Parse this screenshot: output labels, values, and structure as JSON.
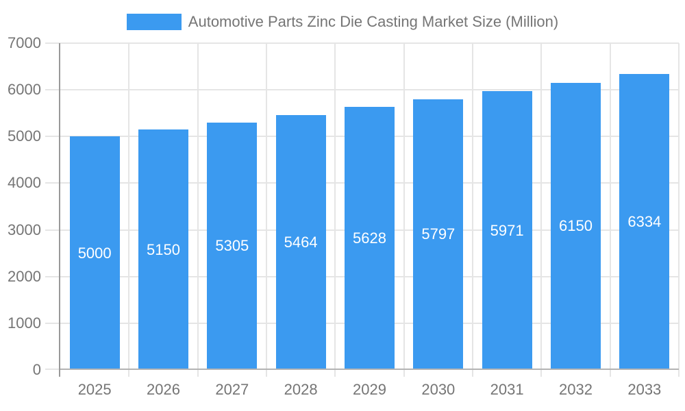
{
  "chart_data": {
    "type": "bar",
    "title": "Automotive Parts Zinc Die Casting Market Size (Million)",
    "categories": [
      "2025",
      "2026",
      "2027",
      "2028",
      "2029",
      "2030",
      "2031",
      "2032",
      "2033"
    ],
    "values": [
      5000,
      5150,
      5305,
      5464,
      5628,
      5797,
      5971,
      6150,
      6334
    ],
    "value_labels": [
      "5000",
      "5150",
      "5305",
      "5464",
      "5628",
      "5797",
      "5971",
      "6150",
      "6334"
    ],
    "xlabel": "",
    "ylabel": "",
    "ylim": [
      0,
      7000
    ],
    "ytick_step": 1000,
    "ytick_labels": [
      "0",
      "1000",
      "2000",
      "3000",
      "4000",
      "5000",
      "6000",
      "7000"
    ],
    "grid": true,
    "legend": {
      "position": "top-center",
      "label": "Automotive Parts Zinc Die Casting Market Size (Million)"
    }
  },
  "colors": {
    "bar": "#3b9af0",
    "grid": "#e5e5e5",
    "axis": "#999999",
    "baseline": "#b3b3b3",
    "text": "#757575",
    "value_label": "#ffffff",
    "background": "#ffffff"
  }
}
